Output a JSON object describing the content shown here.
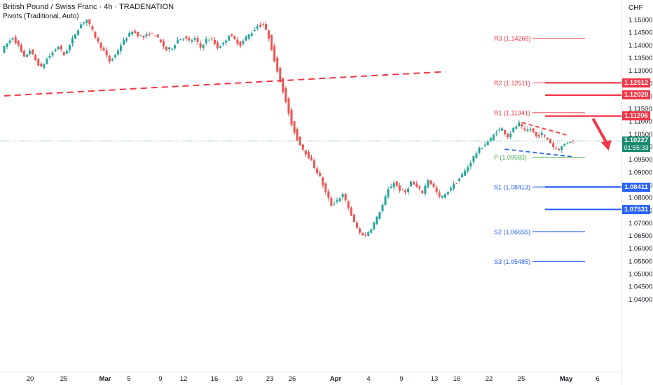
{
  "header": {
    "title": "British Pound / Swiss Franc · 4h · TRADENATION",
    "indicator": "Pivots (Traditional, Auto)",
    "currency": "CHF"
  },
  "colors": {
    "up": "#26a69a",
    "down": "#ef5350",
    "resistance": "#f23645",
    "support": "#2962ff",
    "pivot": "#4caf50",
    "current": "#1a8a6e"
  },
  "current_price": {
    "value": "1.10227",
    "countdown": "01:55:33"
  },
  "price_badges": [
    {
      "label": "1.12512",
      "value": 1.12512,
      "color": "#f23645"
    },
    {
      "label": "1.12029",
      "value": 1.12029,
      "color": "#f23645"
    },
    {
      "label": "1.11206",
      "value": 1.11206,
      "color": "#f23645"
    },
    {
      "label": "1.08411",
      "value": 1.08411,
      "color": "#2962ff"
    },
    {
      "label": "1.07531",
      "value": 1.07531,
      "color": "#2962ff"
    }
  ],
  "chart_data": {
    "type": "candlestick",
    "title": "British Pound / Swiss Franc · 4h · TRADENATION",
    "ylim": [
      1.04,
      1.155
    ],
    "y_ticks": [
      "1.15000",
      "1.14500",
      "1.14000",
      "1.13500",
      "1.13000",
      "1.12500",
      "1.12000",
      "1.11500",
      "1.11000",
      "1.10500",
      "1.10000",
      "1.09500",
      "1.09000",
      "1.08500",
      "1.08000",
      "1.07500",
      "1.07000",
      "1.06500",
      "1.06000",
      "1.05500",
      "1.05000",
      "1.04500",
      "1.04000"
    ],
    "x_ticks": [
      "20",
      "25",
      "Mar",
      "5",
      "9",
      "12",
      "16",
      "19",
      "23",
      "26",
      "Apr",
      "4",
      "9",
      "13",
      "16",
      "22",
      "25",
      "May",
      "6"
    ],
    "pivots": [
      {
        "label": "R3 (1.14269)",
        "value": 1.14269,
        "kind": "resistance"
      },
      {
        "label": "R2 (1.12511)",
        "value": 1.12511,
        "kind": "resistance"
      },
      {
        "label": "R1 (1.11341)",
        "value": 1.11341,
        "kind": "resistance"
      },
      {
        "label": "P (1.09583)",
        "value": 1.09583,
        "kind": "pivot"
      },
      {
        "label": "S1 (1.08413)",
        "value": 1.08413,
        "kind": "support"
      },
      {
        "label": "S2 (1.06655)",
        "value": 1.06655,
        "kind": "support"
      },
      {
        "label": "S3 (1.05485)",
        "value": 1.05485,
        "kind": "support"
      }
    ],
    "horizontal_levels": [
      {
        "value": 1.12512,
        "kind": "resistance"
      },
      {
        "value": 1.12029,
        "kind": "resistance"
      },
      {
        "value": 1.11206,
        "kind": "resistance"
      },
      {
        "value": 1.08411,
        "kind": "support"
      },
      {
        "value": 1.07531,
        "kind": "support"
      }
    ],
    "trend_path": [
      [
        0,
        1.1375
      ],
      [
        2,
        1.1405
      ],
      [
        4,
        1.143
      ],
      [
        6,
        1.1395
      ],
      [
        8,
        1.135
      ],
      [
        10,
        1.138
      ],
      [
        12,
        1.134
      ],
      [
        14,
        1.131
      ],
      [
        16,
        1.1345
      ],
      [
        18,
        1.137
      ],
      [
        20,
        1.1395
      ],
      [
        22,
        1.136
      ],
      [
        24,
        1.14
      ],
      [
        26,
        1.1445
      ],
      [
        28,
        1.1482
      ],
      [
        30,
        1.15
      ],
      [
        32,
        1.1455
      ],
      [
        34,
        1.141
      ],
      [
        36,
        1.1375
      ],
      [
        38,
        1.1335
      ],
      [
        40,
        1.136
      ],
      [
        42,
        1.14
      ],
      [
        44,
        1.143
      ],
      [
        46,
        1.1455
      ],
      [
        48,
        1.144
      ],
      [
        50,
        1.143
      ],
      [
        52,
        1.1445
      ],
      [
        54,
        1.144
      ],
      [
        56,
        1.141
      ],
      [
        58,
        1.138
      ],
      [
        60,
        1.139
      ],
      [
        62,
        1.142
      ],
      [
        64,
        1.143
      ],
      [
        66,
        1.1415
      ],
      [
        68,
        1.1425
      ],
      [
        70,
        1.139
      ],
      [
        72,
        1.142
      ],
      [
        74,
        1.142
      ],
      [
        76,
        1.139
      ],
      [
        78,
        1.1405
      ],
      [
        80,
        1.144
      ],
      [
        82,
        1.142
      ],
      [
        84,
        1.14
      ],
      [
        86,
        1.143
      ],
      [
        88,
        1.145
      ],
      [
        90,
        1.1475
      ],
      [
        92,
        1.148
      ],
      [
        94,
        1.143
      ],
      [
        96,
        1.134
      ],
      [
        98,
        1.126
      ],
      [
        100,
        1.118
      ],
      [
        102,
        1.109
      ],
      [
        104,
        1.103
      ],
      [
        106,
        1.099
      ],
      [
        108,
        1.096
      ],
      [
        110,
        1.092
      ],
      [
        112,
        1.088
      ],
      [
        114,
        1.082
      ],
      [
        116,
        1.077
      ],
      [
        118,
        1.079
      ],
      [
        120,
        1.081
      ],
      [
        122,
        1.076
      ],
      [
        124,
        1.07
      ],
      [
        126,
        1.066
      ],
      [
        128,
        1.065
      ],
      [
        130,
        1.068
      ],
      [
        132,
        1.072
      ],
      [
        134,
        1.077
      ],
      [
        136,
        1.083
      ],
      [
        138,
        1.086
      ],
      [
        140,
        1.083
      ],
      [
        142,
        1.082
      ],
      [
        144,
        1.086
      ],
      [
        146,
        1.084
      ],
      [
        148,
        1.082
      ],
      [
        150,
        1.087
      ],
      [
        152,
        1.084
      ],
      [
        154,
        1.08
      ],
      [
        156,
        1.081
      ],
      [
        158,
        1.084
      ],
      [
        160,
        1.086
      ],
      [
        162,
        1.089
      ],
      [
        164,
        1.092
      ],
      [
        166,
        1.096
      ],
      [
        168,
        1.099
      ],
      [
        170,
        1.101
      ],
      [
        172,
        1.103
      ],
      [
        174,
        1.106
      ],
      [
        176,
        1.107
      ],
      [
        178,
        1.104
      ],
      [
        180,
        1.107
      ],
      [
        182,
        1.109
      ],
      [
        184,
        1.106
      ],
      [
        186,
        1.107
      ],
      [
        188,
        1.104
      ],
      [
        190,
        1.105
      ],
      [
        192,
        1.103
      ],
      [
        194,
        1.1
      ],
      [
        196,
        1.099
      ],
      [
        198,
        1.101
      ],
      [
        200,
        1.1023
      ]
    ],
    "trendlines": [
      {
        "kind": "long-dashed-resistance",
        "from": [
          0,
          1.12
        ],
        "to": [
          155,
          1.1295
        ]
      },
      {
        "kind": "channel-top",
        "from": [
          182,
          1.1095
        ],
        "to": [
          198,
          1.1045
        ]
      },
      {
        "kind": "channel-bottom",
        "from": [
          176,
          1.099
        ],
        "to": [
          200,
          1.096
        ]
      }
    ],
    "arrow": {
      "direction": "down",
      "from": [
        207,
        1.111
      ],
      "to": [
        212,
        1.099
      ]
    },
    "grid": false,
    "legend": "top-left"
  }
}
